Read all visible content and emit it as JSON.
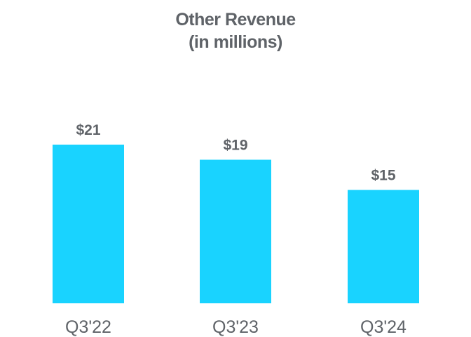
{
  "chart_data": {
    "type": "bar",
    "title": "Other Revenue",
    "subtitle": "(in millions)",
    "categories": [
      "Q3'22",
      "Q3'23",
      "Q3'24"
    ],
    "values": [
      21,
      19,
      15
    ],
    "value_labels": [
      "$21",
      "$19",
      "$15"
    ],
    "xlabel": "",
    "ylabel": "",
    "ylim": [
      0,
      21
    ],
    "grid": false,
    "legend": "none",
    "colors": {
      "bar": "#19D3FF",
      "text": "#5F6368"
    }
  }
}
